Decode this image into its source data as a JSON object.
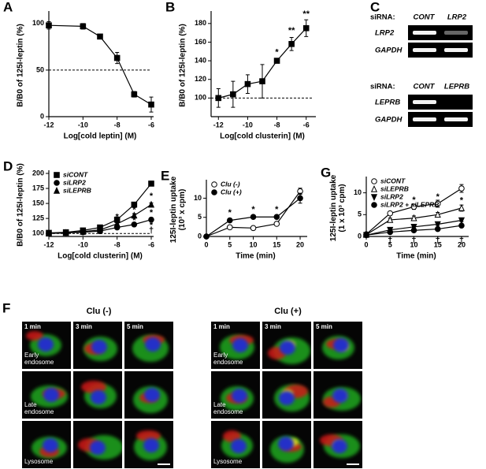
{
  "chart_data": [
    {
      "label": "A",
      "type": "line",
      "xlabel": "Log[cold leptin] (M)",
      "ylabel": [
        "B/B0 of 125I-leptin (%)"
      ],
      "x": [
        -12,
        -10,
        -9,
        -8,
        -7,
        -6
      ],
      "xlim": [
        -12,
        -6
      ],
      "xticks": [
        -12,
        -10,
        -8,
        -6
      ],
      "ylim": [
        0,
        110
      ],
      "yticks": [
        0,
        50,
        100
      ],
      "hline": 50,
      "series": [
        {
          "color": "#000000",
          "marker": "square",
          "values": [
            98,
            97,
            86,
            63,
            24,
            13
          ],
          "errors": [
            4,
            3,
            2,
            6,
            3,
            8
          ]
        }
      ]
    },
    {
      "label": "B",
      "type": "line",
      "xlabel": "Log[cold clusterin] (M)",
      "ylabel": [
        "B/B0 of 125I-leptin (%)"
      ],
      "x": [
        -12,
        -11,
        -10,
        -9,
        -8,
        -7,
        -6
      ],
      "xlim": [
        -12.5,
        -5.5
      ],
      "xticks": [
        -12,
        -10,
        -8,
        -6
      ],
      "ylim": [
        80,
        190
      ],
      "yticks": [
        100,
        120,
        140,
        160,
        180
      ],
      "hline": 100,
      "series": [
        {
          "color": "#000000",
          "marker": "square",
          "values": [
            100,
            104,
            115,
            118,
            140,
            158,
            175
          ],
          "errors": [
            10,
            14,
            10,
            18,
            2,
            7,
            9
          ]
        }
      ],
      "annotations": [
        {
          "x": -8,
          "y": 149,
          "text": "*"
        },
        {
          "x": -7,
          "y": 172,
          "text": "**"
        },
        {
          "x": -6,
          "y": 190,
          "text": "**"
        }
      ]
    },
    {
      "label": "D",
      "type": "line",
      "xlabel": "Log[cold clusterin] (M)",
      "ylabel": [
        "B/B0 of 125I-leptin (%)"
      ],
      "x": [
        -12,
        -11,
        -10,
        -9,
        -8,
        -7,
        -6
      ],
      "xlim": [
        -12,
        -6
      ],
      "xticks": [
        -12,
        -10,
        -8,
        -6
      ],
      "ylim": [
        95,
        200
      ],
      "yticks": [
        100,
        125,
        150,
        175,
        200
      ],
      "hline": 100,
      "legend": "top-left",
      "series": [
        {
          "name": "siCONT",
          "color": "#000000",
          "marker": "square",
          "values": [
            101,
            102,
            105,
            110,
            123,
            148,
            183
          ],
          "errors": [
            1,
            1,
            2,
            2,
            3,
            3,
            4
          ]
        },
        {
          "name": "siLRP2",
          "color": "#000000",
          "marker": "circle",
          "values": [
            100,
            101,
            102,
            104,
            110,
            115,
            123
          ],
          "errors": [
            1,
            1,
            1,
            2,
            2,
            2,
            3
          ]
        },
        {
          "name": "siLEPRB",
          "color": "#000000",
          "marker": "triangle",
          "values": [
            100,
            101,
            103,
            106,
            116,
            130,
            148
          ],
          "errors": [
            1,
            1,
            1,
            2,
            2,
            3,
            3
          ]
        }
      ],
      "annotations": [
        {
          "x": -6,
          "y": 162,
          "text": "*"
        },
        {
          "x": -7,
          "y": 139,
          "text": "*"
        },
        {
          "x": -8,
          "y": 127,
          "text": "*"
        },
        {
          "x": -6,
          "y": 134,
          "text": "*"
        },
        {
          "x": -7,
          "y": 121,
          "text": "*"
        },
        {
          "x": -8,
          "y": 113,
          "text": "*"
        },
        {
          "x": -6,
          "y": 113,
          "text": "*"
        },
        {
          "x": -6,
          "y": 105,
          "text": "†"
        },
        {
          "x": -9,
          "y": 98,
          "text": "*"
        }
      ]
    },
    {
      "label": "E",
      "type": "line",
      "xlabel": "Time (min)",
      "ylabel": [
        "125I-leptin uptake",
        "(10³ x cpm)"
      ],
      "x": [
        0,
        5,
        10,
        15,
        20
      ],
      "xlim": [
        0,
        21
      ],
      "xticks": [
        0,
        5,
        10,
        15,
        20
      ],
      "ylim": [
        0,
        14
      ],
      "yticks": [
        0,
        5,
        10
      ],
      "legend": "top-left",
      "series": [
        {
          "name": "Clu (-)",
          "color": "#000000",
          "marker": "open-circle",
          "values": [
            0,
            2.4,
            2.2,
            3.3,
            11.8
          ],
          "errors": [
            0,
            0.2,
            0.2,
            0.3,
            0.8
          ]
        },
        {
          "name": "Clu (+)",
          "color": "#000000",
          "marker": "circle",
          "values": [
            0,
            4.2,
            5.1,
            5.1,
            10
          ],
          "errors": [
            0,
            0.3,
            0.3,
            0.3,
            1.3
          ]
        }
      ],
      "annotations": [
        {
          "x": 5,
          "y": 6.2,
          "text": "*"
        },
        {
          "x": 10,
          "y": 7,
          "text": "*"
        },
        {
          "x": 15,
          "y": 7,
          "text": "*"
        }
      ]
    },
    {
      "label": "G",
      "type": "line",
      "xlabel": "Time (min)",
      "ylabel": [
        "125I-leptin uptake",
        "(1 x 10³ cpm)"
      ],
      "x": [
        0,
        5,
        10,
        15,
        20
      ],
      "xlim": [
        0,
        21
      ],
      "xticks": [
        0,
        5,
        10,
        15,
        20
      ],
      "ylim": [
        0,
        13
      ],
      "yticks": [
        0,
        5,
        10
      ],
      "legend": "top-left",
      "series": [
        {
          "name": "siCONT",
          "color": "#000000",
          "marker": "open-circle",
          "values": [
            0.5,
            5.3,
            6.8,
            7.5,
            11
          ],
          "errors": [
            0.1,
            0.4,
            0.6,
            0.8,
            0.9
          ]
        },
        {
          "name": "siLEPRB",
          "color": "#000000",
          "marker": "open-triangle",
          "values": [
            0.4,
            3.8,
            4.2,
            5,
            6.5
          ],
          "errors": [
            0.1,
            0.4,
            0.5,
            0.5,
            0.7
          ]
        },
        {
          "name": "siLRP2",
          "color": "#000000",
          "marker": "down-triangle",
          "values": [
            0.3,
            1.5,
            2.2,
            2.8,
            3.7
          ],
          "errors": [
            0.1,
            0.2,
            0.2,
            0.3,
            0.3
          ]
        },
        {
          "name": "siLRP2 + siLEPRB",
          "color": "#000000",
          "marker": "circle",
          "values": [
            0.3,
            1,
            1.4,
            1.7,
            2.5
          ],
          "errors": [
            0.1,
            0.1,
            0.2,
            0.2,
            0.2
          ]
        }
      ],
      "annotations": [
        {
          "x": 10,
          "y": 8.3,
          "text": "*"
        },
        {
          "x": 15,
          "y": 9,
          "text": "*"
        },
        {
          "x": 20,
          "y": 8.2,
          "text": "*"
        },
        {
          "x": 5,
          "y": -0.9,
          "text": "†"
        },
        {
          "x": 10,
          "y": -0.9,
          "text": "†"
        },
        {
          "x": 15,
          "y": -0.9,
          "text": "†"
        },
        {
          "x": 20,
          "y": -0.9,
          "text": "†"
        }
      ]
    }
  ],
  "panel_c": {
    "label": "C",
    "blots": [
      {
        "header": "siRNA:",
        "lanes": [
          "CONT",
          "LRP2"
        ],
        "rows": [
          "LRP2",
          "GAPDH"
        ]
      },
      {
        "header": "siRNA:",
        "lanes": [
          "CONT",
          "LEPRB"
        ],
        "rows": [
          "LEPRB",
          "GAPDH"
        ]
      }
    ]
  },
  "panel_f": {
    "label": "F",
    "groups": [
      "Clu (-)",
      "Clu (+)"
    ],
    "times": [
      "1 min",
      "3 min",
      "5 min"
    ],
    "rows": [
      "Early endosome",
      "Late endosome",
      "Lysosome"
    ]
  }
}
